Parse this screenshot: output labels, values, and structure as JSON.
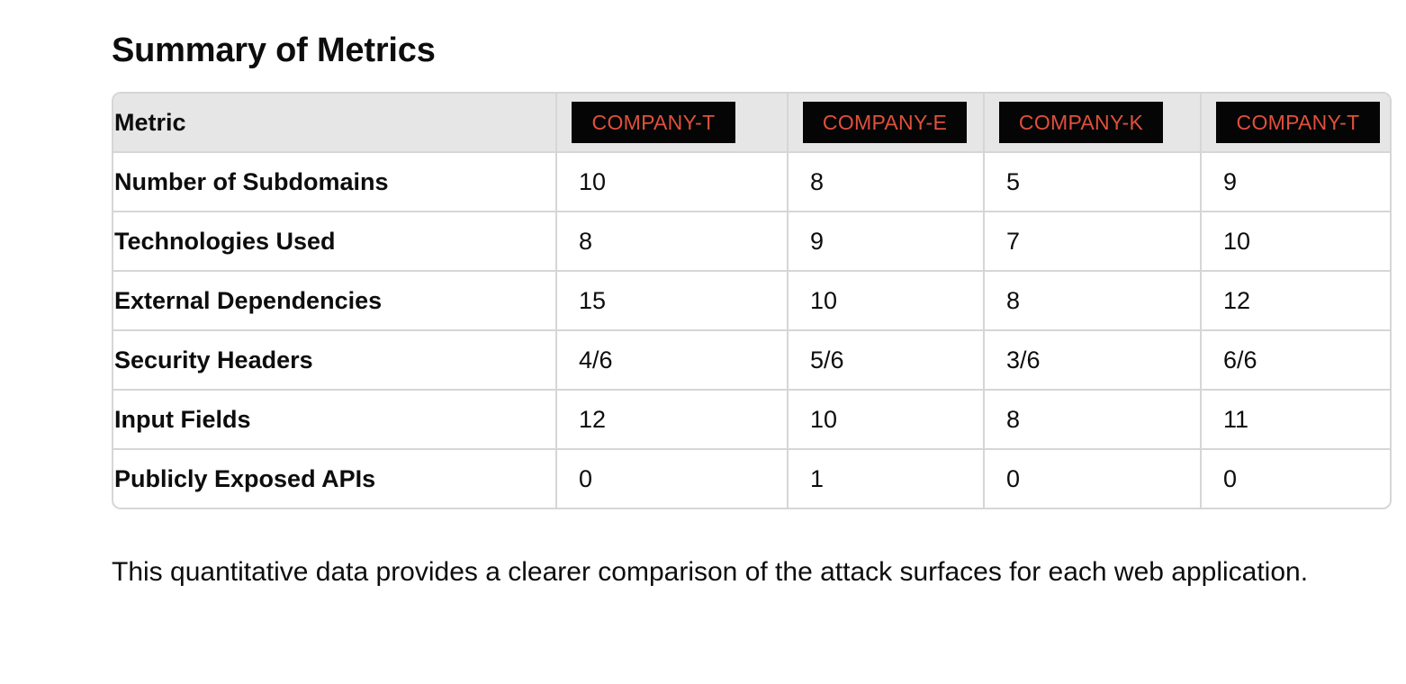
{
  "heading": "Summary of Metrics",
  "table": {
    "metric_header": "Metric",
    "companies": [
      "COMPANY-T",
      "COMPANY-E",
      "COMPANY-K",
      "COMPANY-T"
    ],
    "rows": [
      {
        "label": "Number of Subdomains",
        "values": [
          "10",
          "8",
          "5",
          "9"
        ]
      },
      {
        "label": "Technologies Used",
        "values": [
          "8",
          "9",
          "7",
          "10"
        ]
      },
      {
        "label": "External Dependencies",
        "values": [
          "15",
          "10",
          "8",
          "12"
        ]
      },
      {
        "label": "Security Headers",
        "values": [
          "4/6",
          "5/6",
          "3/6",
          "6/6"
        ]
      },
      {
        "label": "Input Fields",
        "values": [
          "12",
          "10",
          "8",
          "11"
        ]
      },
      {
        "label": "Publicly Exposed APIs",
        "values": [
          "0",
          "1",
          "0",
          "0"
        ]
      }
    ]
  },
  "description": "This quantitative data provides a clearer comparison of the attack surfaces for each web application.",
  "colors": {
    "badge_background": "#050505",
    "badge_text": "#e0503c",
    "header_background": "#e6e6e6",
    "border": "#d6d6d6"
  }
}
